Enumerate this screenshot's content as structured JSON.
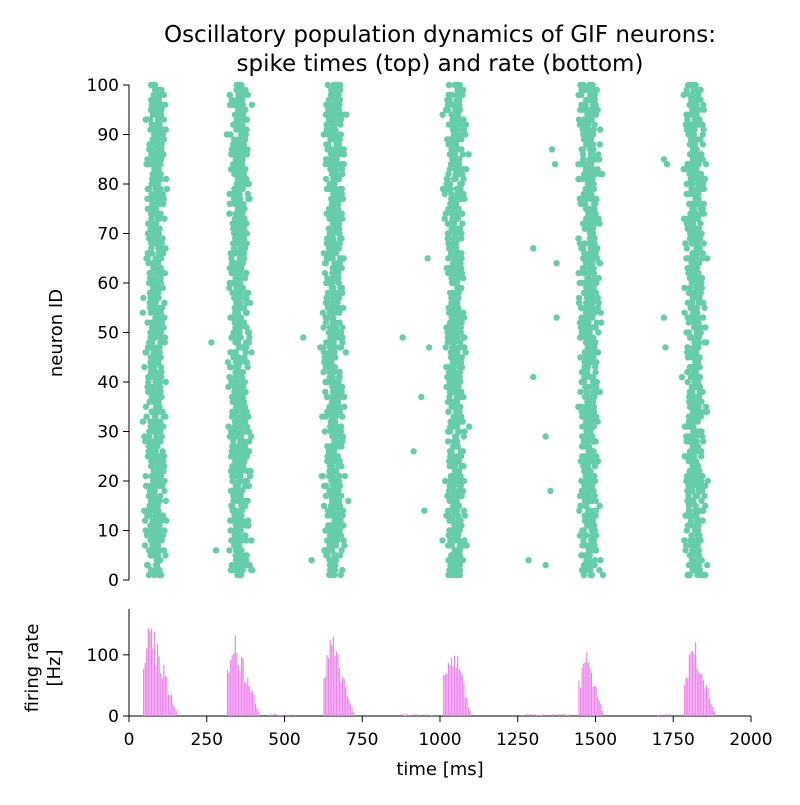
{
  "title_line1": "Oscillatory population dynamics of GIF neurons:",
  "title_line2": "spike times (top) and rate (bottom)",
  "colors": {
    "raster": "#66cdaa",
    "rate": "#ee82ee",
    "axis": "#000000"
  },
  "chart_data": [
    {
      "type": "scatter",
      "name": "raster",
      "ylabel": "neuron ID",
      "xlim": [
        0,
        2000
      ],
      "ylim": [
        0,
        100
      ],
      "yticks": [
        0,
        10,
        20,
        30,
        40,
        50,
        60,
        70,
        80,
        90,
        100
      ],
      "grid": false,
      "bursts_center_ms": [
        85,
        355,
        660,
        1050,
        1480,
        1820
      ],
      "burst_half_width_ms": 28,
      "points_approx": [
        {
          "x": 560,
          "y": 49
        },
        {
          "x": 615,
          "y": 47
        },
        {
          "x": 587,
          "y": 4
        },
        {
          "x": 880,
          "y": 49
        },
        {
          "x": 915,
          "y": 26
        },
        {
          "x": 950,
          "y": 14
        },
        {
          "x": 940,
          "y": 37
        },
        {
          "x": 965,
          "y": 47
        },
        {
          "x": 960,
          "y": 65
        },
        {
          "x": 1285,
          "y": 4
        },
        {
          "x": 1340,
          "y": 3
        },
        {
          "x": 1300,
          "y": 41
        },
        {
          "x": 1340,
          "y": 29
        },
        {
          "x": 1355,
          "y": 18
        },
        {
          "x": 1300,
          "y": 67
        },
        {
          "x": 1360,
          "y": 87
        },
        {
          "x": 1370,
          "y": 84
        },
        {
          "x": 1375,
          "y": 64
        },
        {
          "x": 1375,
          "y": 53
        },
        {
          "x": 265,
          "y": 48
        },
        {
          "x": 280,
          "y": 6
        },
        {
          "x": 1720,
          "y": 53
        },
        {
          "x": 1725,
          "y": 47
        },
        {
          "x": 1720,
          "y": 85
        },
        {
          "x": 1730,
          "y": 84
        }
      ]
    },
    {
      "type": "bar",
      "name": "rate",
      "xlabel": "time [ms]",
      "ylabel": "firing rate\n[Hz]",
      "xlim": [
        0,
        2000
      ],
      "ylim": [
        0,
        170
      ],
      "xticks": [
        0,
        250,
        500,
        750,
        1000,
        1250,
        1500,
        1750,
        2000
      ],
      "yticks": [
        0,
        100
      ],
      "bin_width_ms": 5,
      "grid": false,
      "bursts": [
        {
          "start": 45,
          "peak_time": 60,
          "peak": 155,
          "end": 155
        },
        {
          "start": 315,
          "peak_time": 335,
          "peak": 130,
          "end": 420
        },
        {
          "start": 625,
          "peak_time": 650,
          "peak": 125,
          "end": 725
        },
        {
          "start": 1010,
          "peak_time": 1045,
          "peak": 115,
          "end": 1100
        },
        {
          "start": 1445,
          "peak_time": 1470,
          "peak": 100,
          "end": 1525
        },
        {
          "start": 1785,
          "peak_time": 1815,
          "peak": 115,
          "end": 1885
        }
      ]
    }
  ]
}
